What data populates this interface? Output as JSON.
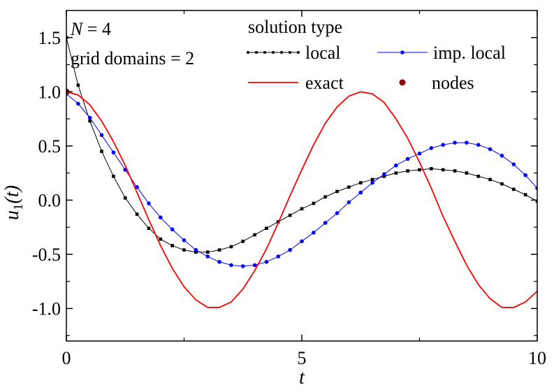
{
  "chart_data": {
    "type": "line",
    "title": "",
    "xlabel": "t",
    "ylabel_main": "u",
    "ylabel_sub": "1",
    "ylabel_tail": "(t)",
    "xlim": [
      0,
      10
    ],
    "ylim": [
      -1.3,
      1.75
    ],
    "x_ticks": [
      0,
      5,
      10
    ],
    "x_tick_labels": [
      "0",
      "5",
      "10"
    ],
    "x_minor_ticks": [
      2.5,
      7.5
    ],
    "y_ticks": [
      1.5,
      1.0,
      0.5,
      0.0,
      -0.5,
      -1.0
    ],
    "y_tick_labels": [
      "1.5",
      "1.0",
      "0.5",
      "0.0",
      "-0.5",
      "-1.0"
    ],
    "y_minor_ticks": [
      1.25,
      0.75,
      0.25,
      -0.25,
      -0.75,
      -1.25
    ],
    "grid": false,
    "annotations": {
      "n_var": "N",
      "n_rest": " = 4",
      "grid_domains": "grid domains = 2"
    },
    "legend": {
      "title": "solution type",
      "placement": "top-right",
      "entries": [
        {
          "key": "local",
          "label": "local"
        },
        {
          "key": "imp_local",
          "label": "imp. local"
        },
        {
          "key": "exact",
          "label": "exact"
        },
        {
          "key": "nodes",
          "label": "nodes"
        }
      ]
    },
    "colors": {
      "local": "#000000",
      "imp_local": "#0000ff",
      "exact": "#ff0000",
      "nodes": "#8b0000",
      "axis": "#000000"
    },
    "series": [
      {
        "key": "local",
        "name": "local",
        "marker": "square",
        "x": [
          0,
          0.25,
          0.5,
          0.75,
          1.0,
          1.25,
          1.5,
          1.75,
          2.0,
          2.25,
          2.5,
          2.75,
          3.0,
          3.25,
          3.5,
          3.75,
          4.0,
          4.25,
          4.5,
          4.75,
          5.0,
          5.25,
          5.5,
          5.75,
          6.0,
          6.25,
          6.5,
          6.75,
          7.0,
          7.25,
          7.5,
          7.75,
          8.0,
          8.25,
          8.5,
          8.75,
          9.0,
          9.25,
          9.5,
          9.75,
          10.0
        ],
        "y": [
          1.5,
          1.06,
          0.73,
          0.45,
          0.22,
          0.02,
          -0.13,
          -0.26,
          -0.36,
          -0.42,
          -0.46,
          -0.48,
          -0.48,
          -0.46,
          -0.43,
          -0.38,
          -0.32,
          -0.26,
          -0.2,
          -0.14,
          -0.08,
          -0.03,
          0.03,
          0.08,
          0.12,
          0.16,
          0.19,
          0.22,
          0.25,
          0.27,
          0.28,
          0.29,
          0.28,
          0.27,
          0.25,
          0.22,
          0.19,
          0.15,
          0.1,
          0.05,
          -0.01
        ]
      },
      {
        "key": "imp_local",
        "name": "imp. local",
        "marker": "circle",
        "x": [
          0,
          0.25,
          0.5,
          0.75,
          1.0,
          1.25,
          1.5,
          1.75,
          2.0,
          2.25,
          2.5,
          2.75,
          3.0,
          3.25,
          3.5,
          3.75,
          4.0,
          4.25,
          4.5,
          4.75,
          5.0,
          5.25,
          5.5,
          5.75,
          6.0,
          6.25,
          6.5,
          6.75,
          7.0,
          7.25,
          7.5,
          7.75,
          8.0,
          8.25,
          8.5,
          8.75,
          9.0,
          9.25,
          9.5,
          9.75,
          10.0
        ],
        "y": [
          0.98,
          0.89,
          0.76,
          0.6,
          0.44,
          0.28,
          0.12,
          -0.03,
          -0.16,
          -0.27,
          -0.37,
          -0.46,
          -0.52,
          -0.57,
          -0.6,
          -0.61,
          -0.6,
          -0.57,
          -0.52,
          -0.46,
          -0.38,
          -0.3,
          -0.21,
          -0.12,
          -0.02,
          0.07,
          0.16,
          0.24,
          0.32,
          0.38,
          0.43,
          0.48,
          0.51,
          0.53,
          0.53,
          0.51,
          0.47,
          0.41,
          0.33,
          0.23,
          0.11
        ]
      },
      {
        "key": "exact",
        "name": "exact",
        "marker": "none",
        "x": [
          0,
          0.25,
          0.5,
          0.75,
          1.0,
          1.25,
          1.5,
          1.75,
          2.0,
          2.25,
          2.5,
          2.75,
          3.0,
          3.25,
          3.5,
          3.75,
          4.0,
          4.25,
          4.5,
          4.75,
          5.0,
          5.25,
          5.5,
          5.75,
          6.0,
          6.25,
          6.5,
          6.75,
          7.0,
          7.25,
          7.5,
          7.75,
          8.0,
          8.25,
          8.5,
          8.75,
          9.0,
          9.25,
          9.5,
          9.75,
          10.0
        ],
        "y": [
          1.0,
          0.97,
          0.88,
          0.73,
          0.54,
          0.32,
          0.07,
          -0.18,
          -0.42,
          -0.63,
          -0.8,
          -0.92,
          -0.99,
          -0.99,
          -0.94,
          -0.82,
          -0.65,
          -0.45,
          -0.21,
          0.04,
          0.28,
          0.51,
          0.71,
          0.86,
          0.96,
          1.0,
          0.98,
          0.9,
          0.75,
          0.57,
          0.35,
          0.11,
          -0.15,
          -0.38,
          -0.6,
          -0.78,
          -0.91,
          -0.99,
          -0.99,
          -0.94,
          -0.84
        ]
      },
      {
        "key": "nodes",
        "name": "nodes",
        "marker": "dot",
        "x": [
          0
        ],
        "y": [
          1.0
        ]
      }
    ]
  }
}
